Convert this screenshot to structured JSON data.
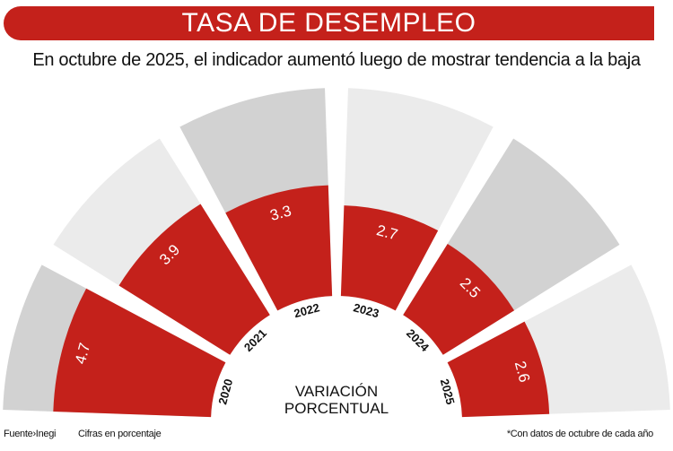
{
  "title": "TASA DE DESEMPLEO",
  "subtitle": "En octubre de 2025, el indicador aumentó luego de mostrar tendencia a la baja",
  "center_label": [
    "VARIACIÓN",
    "PORCENTUAL"
  ],
  "footer": {
    "source": "Fuente›Inegi",
    "units": "Cifras en porcentaje",
    "note": "*Con datos de octubre de cada año"
  },
  "colors": {
    "red": "#c4211b",
    "gray": "#d2d2d2",
    "light_gray": "#ebebeb"
  },
  "chart_data": {
    "type": "bar",
    "subtype": "radial",
    "categories": [
      "2020",
      "2021",
      "2022",
      "2023",
      "2024",
      "2025"
    ],
    "values": [
      4.7,
      3.9,
      3.3,
      2.7,
      2.5,
      2.6
    ],
    "value_labels": [
      "4.7",
      "3.9",
      "3.3",
      "2.7",
      "2.5",
      "2.6"
    ],
    "ylim": [
      0,
      6.2
    ],
    "ylabel": "",
    "xlabel": ""
  }
}
